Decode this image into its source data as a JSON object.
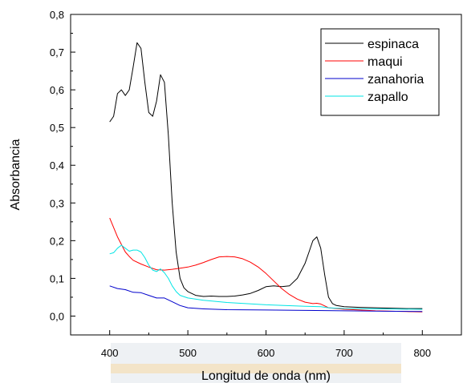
{
  "chart_data": {
    "type": "line",
    "xlabel": "Longitud de onda (nm)",
    "ylabel": "Absorbancia",
    "xlim": [
      350,
      850
    ],
    "ylim": [
      -0.05,
      0.8
    ],
    "xticks": [
      400,
      500,
      600,
      700,
      800
    ],
    "xtick_labels": [
      "400",
      "500",
      "600",
      "700",
      "800"
    ],
    "yticks": [
      0.0,
      0.1,
      0.2,
      0.3,
      0.4,
      0.5,
      0.6,
      0.7,
      0.8
    ],
    "ytick_labels": [
      "0,0",
      "0,1",
      "0,2",
      "0,3",
      "0,4",
      "0,5",
      "0,6",
      "0,7",
      "0,8"
    ],
    "legend_position": "top-right",
    "grid": false,
    "series": [
      {
        "name": "espinaca",
        "color": "#000000",
        "x": [
          400,
          405,
          410,
          415,
          420,
          425,
          430,
          435,
          440,
          445,
          450,
          455,
          460,
          465,
          470,
          475,
          480,
          485,
          490,
          495,
          500,
          510,
          520,
          530,
          540,
          550,
          560,
          570,
          580,
          590,
          600,
          610,
          620,
          630,
          640,
          650,
          655,
          660,
          665,
          670,
          675,
          680,
          685,
          690,
          700,
          720,
          740,
          760,
          780,
          800
        ],
        "values": [
          0.515,
          0.53,
          0.59,
          0.6,
          0.585,
          0.6,
          0.66,
          0.725,
          0.71,
          0.62,
          0.54,
          0.53,
          0.57,
          0.64,
          0.62,
          0.48,
          0.3,
          0.17,
          0.1,
          0.075,
          0.065,
          0.055,
          0.052,
          0.053,
          0.052,
          0.052,
          0.053,
          0.056,
          0.06,
          0.068,
          0.078,
          0.08,
          0.078,
          0.08,
          0.1,
          0.14,
          0.17,
          0.2,
          0.21,
          0.18,
          0.11,
          0.05,
          0.033,
          0.028,
          0.025,
          0.023,
          0.022,
          0.021,
          0.02,
          0.02
        ]
      },
      {
        "name": "maqui",
        "color": "#ff0000",
        "x": [
          400,
          405,
          410,
          415,
          420,
          425,
          430,
          440,
          450,
          460,
          470,
          480,
          490,
          500,
          510,
          520,
          530,
          540,
          550,
          560,
          570,
          580,
          590,
          600,
          610,
          620,
          630,
          640,
          650,
          660,
          665,
          670,
          680,
          700,
          720,
          740,
          760,
          780,
          800
        ],
        "values": [
          0.26,
          0.235,
          0.21,
          0.19,
          0.17,
          0.158,
          0.148,
          0.138,
          0.13,
          0.123,
          0.122,
          0.124,
          0.127,
          0.13,
          0.135,
          0.142,
          0.15,
          0.157,
          0.158,
          0.157,
          0.152,
          0.143,
          0.13,
          0.113,
          0.093,
          0.073,
          0.057,
          0.045,
          0.037,
          0.033,
          0.034,
          0.032,
          0.022,
          0.018,
          0.016,
          0.014,
          0.013,
          0.012,
          0.011
        ]
      },
      {
        "name": "zanahoria",
        "color": "#0000cc",
        "x": [
          400,
          410,
          420,
          430,
          440,
          450,
          460,
          470,
          480,
          490,
          500,
          520,
          550,
          600,
          650,
          700,
          750,
          800
        ],
        "values": [
          0.08,
          0.073,
          0.07,
          0.063,
          0.062,
          0.055,
          0.048,
          0.048,
          0.038,
          0.028,
          0.022,
          0.019,
          0.017,
          0.016,
          0.015,
          0.014,
          0.013,
          0.012
        ]
      },
      {
        "name": "zapallo",
        "color": "#00e5e5",
        "x": [
          400,
          405,
          410,
          415,
          420,
          425,
          430,
          435,
          440,
          445,
          450,
          455,
          460,
          465,
          470,
          475,
          480,
          485,
          490,
          500,
          520,
          550,
          600,
          650,
          670,
          680,
          700,
          750,
          800
        ],
        "values": [
          0.165,
          0.168,
          0.18,
          0.188,
          0.18,
          0.172,
          0.175,
          0.175,
          0.17,
          0.155,
          0.135,
          0.122,
          0.118,
          0.125,
          0.115,
          0.1,
          0.08,
          0.065,
          0.055,
          0.048,
          0.042,
          0.036,
          0.03,
          0.026,
          0.025,
          0.022,
          0.02,
          0.019,
          0.018
        ]
      }
    ]
  }
}
